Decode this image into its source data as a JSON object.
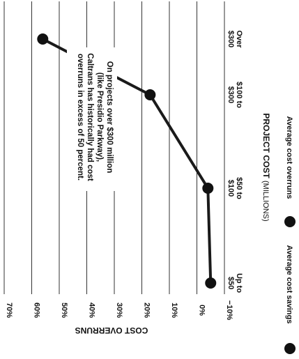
{
  "chart_data": {
    "type": "line",
    "rotated": "image rotated 90 degrees clockwise",
    "x": [
      "Up to $50",
      "$50 to $100",
      "$100 to $300",
      "Over $300"
    ],
    "y": [
      -5,
      -4,
      17,
      56
    ],
    "ylim": [
      -10,
      70
    ],
    "yticks": [
      -10,
      0,
      10,
      20,
      30,
      40,
      50,
      60,
      70
    ],
    "ytick_labels": [
      "−10%",
      "0%",
      "10%",
      "20%",
      "30%",
      "40%",
      "50%",
      "60%",
      "70%"
    ],
    "xtick_lines": [
      [
        "Up to",
        "$50"
      ],
      [
        "$50 to",
        "$100"
      ],
      [
        "$100 to",
        "$300"
      ],
      [
        "Over",
        "$300"
      ]
    ],
    "xlabel_bold": "PROJECT COST",
    "xlabel_light": "(MILLIONS)",
    "ylabel": "COST OVERRUNS",
    "grid": true,
    "annotation": [
      "On projects over $300 million",
      "(like Presidio Parkway),",
      "Caltrans has historically had cost",
      "overruns in excess of 50 percent."
    ],
    "legend": [
      {
        "label": "Average cost savings"
      },
      {
        "label": "Average cost overruns"
      }
    ],
    "colors": {
      "line": "#1a1a1a",
      "marker": "#111111",
      "grid": "#333333"
    }
  }
}
